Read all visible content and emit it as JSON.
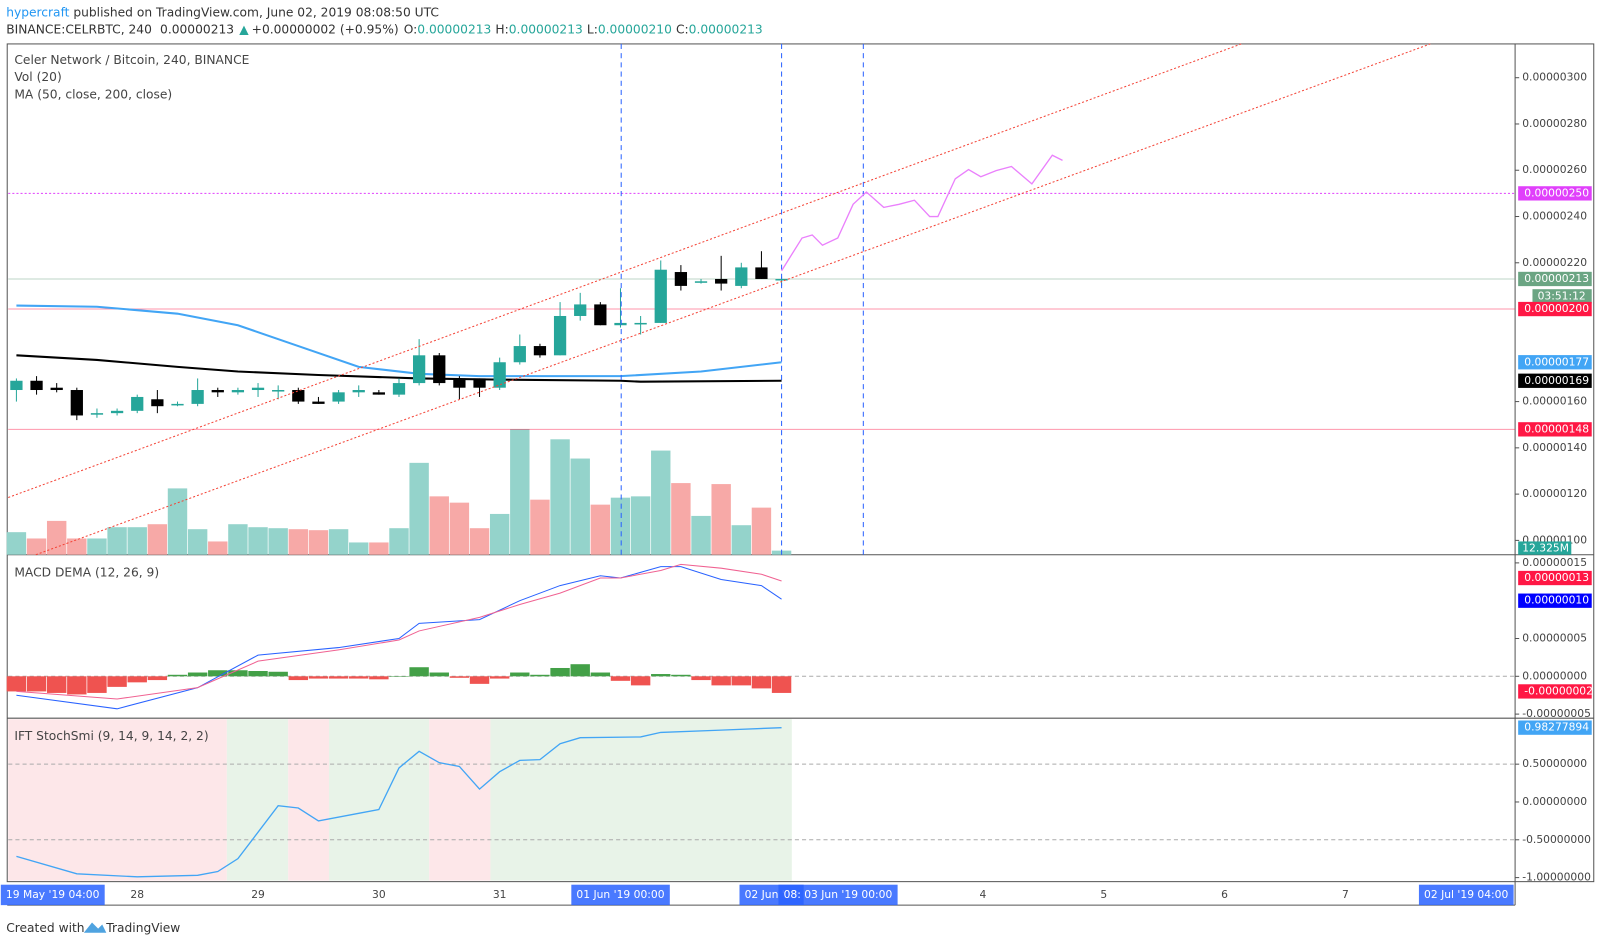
{
  "header": {
    "author": "hypercraft",
    "published": " published on TradingView.com, June 02, 2019 08:08:50 UTC",
    "symbol": "BINANCE:CELRBTC, 240",
    "last": "0.00000213",
    "arrow": "▲",
    "change": "+0.00000002 (+0.95%)",
    "ohlc": [
      {
        "key": "O:",
        "text": "0.00000213"
      },
      {
        "key": "H:",
        "text": "0.00000213"
      },
      {
        "key": "L:",
        "text": "0.00000210"
      },
      {
        "key": "C:",
        "text": "0.00000213"
      }
    ]
  },
  "price_pane": {
    "legend": [
      "Celer Network / Bitcoin, 240, BINANCE",
      "Vol (20)",
      "MA (50, close, 200, close)"
    ],
    "ylim": [
      9.38e-07,
      3.146e-06
    ],
    "yticks": [
      {
        "value": 3e-06,
        "label": "0.00000300"
      },
      {
        "value": 2.8e-06,
        "label": "0.00000280"
      },
      {
        "value": 2.6e-06,
        "label": "0.00000260"
      },
      {
        "value": 2.4e-06,
        "label": "0.00000240"
      },
      {
        "value": 2.2e-06,
        "label": "0.00000220"
      },
      {
        "value": 1.6e-06,
        "label": "0.00000160"
      },
      {
        "value": 1.4e-06,
        "label": "0.00000140"
      },
      {
        "value": 1.2e-06,
        "label": "0.00000120"
      },
      {
        "value": 1e-06,
        "label": "0.00000100"
      }
    ],
    "candles": {
      "open": [
        1.65e-06,
        1.69e-06,
        1.66e-06,
        1.65e-06,
        1.55e-06,
        1.55e-06,
        1.56e-06,
        1.61e-06,
        1.59e-06,
        1.59e-06,
        1.65e-06,
        1.64e-06,
        1.65e-06,
        1.65e-06,
        1.65e-06,
        1.6e-06,
        1.6e-06,
        1.64e-06,
        1.64e-06,
        1.63e-06,
        1.68e-06,
        1.8e-06,
        1.7e-06,
        1.7e-06,
        1.66e-06,
        1.77e-06,
        1.84e-06,
        1.8e-06,
        1.97e-06,
        2.02e-06,
        1.93e-06,
        1.94e-06,
        1.94e-06,
        2.16e-06,
        2.12e-06,
        2.13e-06,
        2.1e-06,
        2.18e-06,
        2.13e-06
      ],
      "high": [
        1.7e-06,
        1.71e-06,
        1.68e-06,
        1.66e-06,
        1.57e-06,
        1.57e-06,
        1.63e-06,
        1.65e-06,
        1.6e-06,
        1.7e-06,
        1.66e-06,
        1.66e-06,
        1.68e-06,
        1.67e-06,
        1.66e-06,
        1.62e-06,
        1.65e-06,
        1.67e-06,
        1.65e-06,
        1.7e-06,
        1.87e-06,
        1.81e-06,
        1.71e-06,
        1.7e-06,
        1.79e-06,
        1.89e-06,
        1.85e-06,
        2.03e-06,
        2.07e-06,
        2.03e-06,
        2.09e-06,
        1.97e-06,
        2.21e-06,
        2.19e-06,
        2.13e-06,
        2.23e-06,
        2.2e-06,
        2.25e-06,
        2.14e-06
      ],
      "low": [
        1.6e-06,
        1.63e-06,
        1.64e-06,
        1.52e-06,
        1.53e-06,
        1.54e-06,
        1.55e-06,
        1.55e-06,
        1.58e-06,
        1.58e-06,
        1.62e-06,
        1.63e-06,
        1.62e-06,
        1.61e-06,
        1.59e-06,
        1.59e-06,
        1.59e-06,
        1.62e-06,
        1.63e-06,
        1.62e-06,
        1.67e-06,
        1.67e-06,
        1.61e-06,
        1.62e-06,
        1.65e-06,
        1.76e-06,
        1.79e-06,
        1.8e-06,
        1.95e-06,
        1.93e-06,
        1.92e-06,
        1.89e-06,
        1.94e-06,
        2.08e-06,
        2.11e-06,
        2.08e-06,
        2.09e-06,
        2.13e-06,
        2.1e-06
      ],
      "close": [
        1.69e-06,
        1.65e-06,
        1.65e-06,
        1.54e-06,
        1.55e-06,
        1.56e-06,
        1.62e-06,
        1.58e-06,
        1.59e-06,
        1.65e-06,
        1.64e-06,
        1.65e-06,
        1.66e-06,
        1.65e-06,
        1.6e-06,
        1.59e-06,
        1.64e-06,
        1.65e-06,
        1.63e-06,
        1.68e-06,
        1.8e-06,
        1.68e-06,
        1.66e-06,
        1.66e-06,
        1.77e-06,
        1.84e-06,
        1.8e-06,
        1.97e-06,
        2.02e-06,
        1.93e-06,
        1.94e-06,
        1.94e-06,
        2.17e-06,
        2.1e-06,
        2.12e-06,
        2.11e-06,
        2.18e-06,
        2.13e-06,
        2.13e-06
      ]
    },
    "ma50": {
      "index": [
        0,
        4,
        8,
        11,
        14,
        17,
        20,
        23,
        26,
        30,
        34,
        38
      ],
      "values": [
        2.015e-06,
        2.01e-06,
        1.98e-06,
        1.93e-06,
        1.84e-06,
        1.75e-06,
        1.72e-06,
        1.71e-06,
        1.71e-06,
        1.71e-06,
        1.73e-06,
        1.77e-06
      ],
      "color": "#42a5f5"
    },
    "ma200": {
      "index": [
        0,
        4,
        8,
        11,
        15,
        20,
        24,
        30,
        31,
        38
      ],
      "values": [
        1.8e-06,
        1.78e-06,
        1.75e-06,
        1.73e-06,
        1.715e-06,
        1.7e-06,
        1.695e-06,
        1.69e-06,
        1.686e-06,
        1.69e-06
      ],
      "color": "#000000"
    },
    "levels": [
      {
        "value": 2.5e-06,
        "label": "0.00000250",
        "color": "#e040fb"
      },
      {
        "value": 2.13e-06,
        "label": "0.00000213",
        "color": "#6ba583"
      },
      {
        "value": 2e-06,
        "label": "0.00000200",
        "color": "#ff1744"
      },
      {
        "value": 1.48e-06,
        "label": "0.00000148",
        "color": "#ff1744"
      }
    ],
    "badges": [
      {
        "value": 1.77e-06,
        "label": "0.00000177",
        "color": "#42a5f5"
      },
      {
        "value": 1.69e-06,
        "label": "0.00000169",
        "color": "#000000"
      }
    ],
    "timer": "03:51:12",
    "volume": {
      "ylim": [
        0,
        1540000000
      ],
      "values": [
        68000000,
        49000000,
        102000000,
        49000000,
        49000000,
        83000000,
        83000000,
        92000000,
        200000000,
        77000000,
        40000000,
        92000000,
        83000000,
        80000000,
        77000000,
        74000000,
        77000000,
        37000000,
        37000000,
        80000000,
        277000000,
        176000000,
        157000000,
        80000000,
        123000000,
        379000000,
        166000000,
        348000000,
        290000000,
        151000000,
        172000000,
        176000000,
        314000000,
        216000000,
        117000000,
        213000000,
        89000000,
        142000000,
        12325000
      ],
      "last_label": "12.325M"
    }
  },
  "macd_pane": {
    "legend": "MACD DEMA (12, 26, 9)",
    "ylim": [
      -5.54e-08,
      1.581e-07
    ],
    "yticks": [
      {
        "value": 1.5e-07,
        "label": "0.00000015"
      },
      {
        "value": 5e-08,
        "label": "0.00000005"
      },
      {
        "value": 0,
        "label": "0.00000000"
      },
      {
        "value": -5e-08,
        "label": "-0.00000005"
      }
    ],
    "hist": [
      -2e-08,
      -2e-08,
      -2.2e-08,
      -2.4e-08,
      -2.2e-08,
      -1.4e-08,
      -8e-09,
      -5e-09,
      2e-09,
      5e-09,
      8e-09,
      8e-09,
      7e-09,
      6e-09,
      -5e-09,
      -3e-09,
      -3e-09,
      -3e-09,
      -4e-09,
      0,
      1.2e-08,
      5e-09,
      -2e-09,
      -1e-08,
      -3e-09,
      5e-09,
      2e-09,
      1.1e-08,
      1.6e-08,
      5e-09,
      -6e-09,
      -1.2e-08,
      3e-09,
      2e-09,
      -5e-09,
      -1.2e-08,
      -1.2e-08,
      -1.6e-08,
      -2.2e-08
    ],
    "index": [
      0,
      5,
      9,
      12,
      16,
      19,
      20,
      23,
      25,
      27,
      29,
      30,
      32,
      33,
      35,
      37,
      38
    ],
    "macd": {
      "values": [
        -2.5e-08,
        -4.3e-08,
        -1.5e-08,
        2.8e-08,
        3.8e-08,
        5e-08,
        7e-08,
        7.5e-08,
        1e-07,
        1.2e-07,
        1.33e-07,
        1.3e-07,
        1.45e-07,
        1.45e-07,
        1.28e-07,
        1.2e-07,
        1.02e-07
      ],
      "color": "#2962ff"
    },
    "signal": {
      "values": [
        -2e-08,
        -3e-08,
        -1.5e-08,
        2e-08,
        3.5e-08,
        4.8e-08,
        6e-08,
        7.8e-08,
        9.5e-08,
        1.1e-07,
        1.3e-07,
        1.3e-07,
        1.4e-07,
        1.48e-07,
        1.43e-07,
        1.35e-07,
        1.26e-07
      ],
      "color": "#f06292"
    },
    "badges": [
      {
        "value": 1.3e-07,
        "label": "0.00000013",
        "color": "#ff1744"
      },
      {
        "value": 1e-07,
        "label": "0.00000010",
        "color": "#0000ff"
      },
      {
        "value": -2e-08,
        "label": "-0.00000002",
        "color": "#ff1744"
      }
    ]
  },
  "ift_pane": {
    "legend": "IFT StochSmi (9, 14, 9, 14, 2, 2)",
    "ylim": [
      -1.04,
      1.081
    ],
    "yticks": [
      {
        "value": 0.5,
        "label": "0.50000000"
      },
      {
        "value": 0,
        "label": "0.00000000"
      },
      {
        "value": -0.5,
        "label": "-0.50000000"
      },
      {
        "value": -1,
        "label": "-1.00000000"
      }
    ],
    "index": [
      0,
      3,
      6,
      9,
      10,
      11,
      13,
      14,
      15,
      17,
      18,
      19,
      20,
      21,
      22,
      23,
      24,
      25,
      26,
      27,
      28,
      31,
      32,
      35,
      38
    ],
    "values": [
      -0.72,
      -0.95,
      -0.99,
      -0.97,
      -0.92,
      -0.75,
      -0.05,
      -0.08,
      -0.25,
      -0.15,
      -0.1,
      0.45,
      0.67,
      0.52,
      0.47,
      0.17,
      0.4,
      0.55,
      0.56,
      0.77,
      0.85,
      0.86,
      0.92,
      0.95,
      0.98277894
    ],
    "badge": {
      "value": 0.98277894,
      "label": "0.98277894",
      "color": "#42a5f5"
    }
  },
  "time_axis": {
    "ticks": [
      {
        "candle": 6,
        "label": "28"
      },
      {
        "candle": 12,
        "label": "29"
      },
      {
        "candle": 18,
        "label": "30"
      },
      {
        "candle": 24,
        "label": "31"
      },
      {
        "candle": 48,
        "label": "4"
      },
      {
        "candle": 54,
        "label": "5"
      },
      {
        "candle": 60,
        "label": "6"
      },
      {
        "candle": 66,
        "label": "7"
      }
    ],
    "badges": [
      {
        "candle": 1.8,
        "label": "19 May '19   04:00"
      },
      {
        "candle": 30,
        "label": "01 Jun '19   00:00"
      },
      {
        "candle": 37.5,
        "label": "02 Jun '19"
      },
      {
        "candle": 40.8,
        "label": "08:   03 Jun '19   00:00"
      },
      {
        "candle": 72,
        "label": "02 Jul '19   04:00"
      }
    ]
  },
  "footer": {
    "created": "Created with",
    "brand": "TradingView"
  }
}
